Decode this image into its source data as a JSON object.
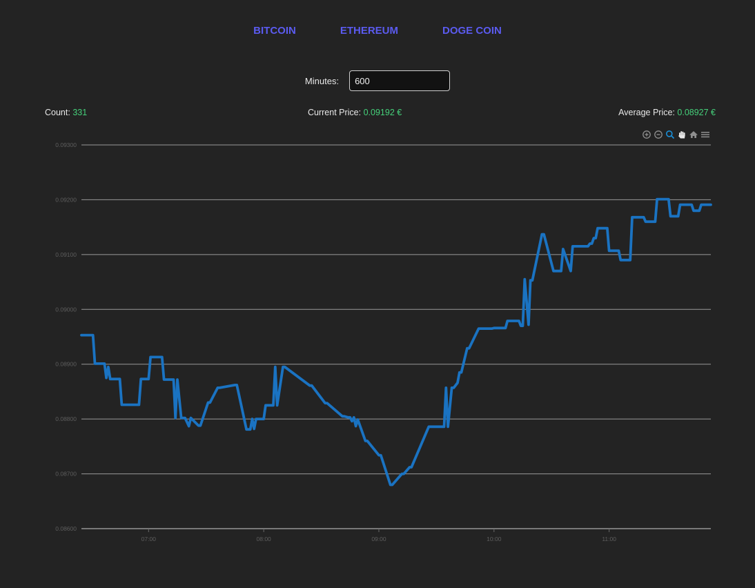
{
  "nav": {
    "items": [
      "BITCOIN",
      "ETHEREUM",
      "DOGE COIN"
    ]
  },
  "minutes": {
    "label": "Minutes:",
    "value": "600"
  },
  "stats": {
    "count_label": "Count:",
    "count_value": "331",
    "current_label": "Current Price:",
    "current_value": "0.09192 €",
    "average_label": "Average Price:",
    "average_value": "0.08927 €"
  },
  "toolbar": {
    "icons": [
      "zoom-in-icon",
      "zoom-out-icon",
      "selection-zoom-icon",
      "pan-icon",
      "home-icon",
      "menu-icon"
    ]
  },
  "colors": {
    "background": "#232323",
    "nav": "#5b5bf0",
    "value": "#45d07a",
    "line": "#1a73c2",
    "grid": "#9a9a9a",
    "tick": "#5e5e5e"
  },
  "chart_data": {
    "type": "line",
    "x_time_range": [
      "06:25",
      "11:53"
    ],
    "ylim": [
      0.086,
      0.093
    ],
    "yticks": [
      "0.08600",
      "0.08700",
      "0.08800",
      "0.08900",
      "0.09000",
      "0.09100",
      "0.09200",
      "0.09300"
    ],
    "xticks": [
      "07:00",
      "08:00",
      "09:00",
      "10:00",
      "11:00"
    ],
    "grid": true,
    "series": [
      {
        "x": [
          "06:25",
          "06:31",
          "06:32",
          "06:37",
          "06:38",
          "06:39",
          "06:40",
          "06:41",
          "06:45",
          "06:46",
          "06:55",
          "06:56",
          "07:00",
          "07:01",
          "07:07",
          "07:08",
          "07:08",
          "07:13",
          "07:14",
          "07:15",
          "07:17",
          "07:18",
          "07:19",
          "07:21",
          "07:22",
          "07:26",
          "07:27",
          "07:31",
          "07:32",
          "07:36",
          "07:37",
          "07:45",
          "07:46",
          "07:51",
          "07:52",
          "07:53",
          "07:54",
          "07:55",
          "07:56",
          "08:00",
          "08:01",
          "08:02",
          "08:03",
          "08:04",
          "08:05",
          "08:06",
          "08:07",
          "08:10",
          "08:11",
          "08:24",
          "08:25",
          "08:32",
          "08:33",
          "08:41",
          "08:42",
          "08:44",
          "08:45",
          "08:46",
          "08:47",
          "08:48",
          "08:49",
          "08:53",
          "08:54",
          "09:00",
          "09:01",
          "09:06",
          "09:07",
          "09:12",
          "09:13",
          "09:16",
          "09:17",
          "09:26",
          "09:27",
          "09:28",
          "09:29",
          "09:34",
          "09:35",
          "09:36",
          "09:38",
          "09:39",
          "09:41",
          "09:42",
          "09:43",
          "09:46",
          "09:47",
          "09:52",
          "09:53",
          "09:55",
          "09:56",
          "09:59",
          "10:00",
          "10:06",
          "10:07",
          "10:12",
          "10:13",
          "10:14",
          "10:15",
          "10:16",
          "10:18",
          "10:19",
          "10:20",
          "10:25",
          "10:26",
          "10:31",
          "10:32",
          "10:33",
          "10:34",
          "10:35",
          "10:36",
          "10:40",
          "10:41",
          "10:42",
          "10:43",
          "10:48",
          "10:49",
          "10:50",
          "10:51",
          "10:52",
          "10:53",
          "10:54",
          "10:59",
          "11:00",
          "11:05",
          "11:06",
          "11:11",
          "11:12",
          "11:18",
          "11:19",
          "11:24",
          "11:25",
          "11:31",
          "11:32",
          "11:36",
          "11:37",
          "11:43",
          "11:44",
          "11:47",
          "11:48",
          "11:53"
        ],
        "values": [
          0.08953,
          0.08953,
          0.08901,
          0.08901,
          0.08875,
          0.08895,
          0.08873,
          0.08873,
          0.08873,
          0.08826,
          0.08826,
          0.08873,
          0.08873,
          0.08913,
          0.08913,
          0.08872,
          0.08872,
          0.08872,
          0.08802,
          0.08872,
          0.08802,
          0.08802,
          0.08802,
          0.08787,
          0.08802,
          0.08788,
          0.08788,
          0.0883,
          0.0883,
          0.08857,
          0.08857,
          0.08862,
          0.08862,
          0.08781,
          0.08781,
          0.08781,
          0.088,
          0.08782,
          0.088,
          0.088,
          0.08825,
          0.08825,
          0.08825,
          0.08825,
          0.08825,
          0.08895,
          0.08825,
          0.08895,
          0.08895,
          0.08861,
          0.08861,
          0.08829,
          0.08829,
          0.08805,
          0.08805,
          0.08803,
          0.08803,
          0.08796,
          0.08803,
          0.08787,
          0.08799,
          0.0876,
          0.0876,
          0.08734,
          0.08734,
          0.0868,
          0.0868,
          0.087,
          0.087,
          0.08712,
          0.08712,
          0.08786,
          0.08786,
          0.08786,
          0.08786,
          0.08786,
          0.08857,
          0.08786,
          0.08857,
          0.08857,
          0.08866,
          0.08885,
          0.08885,
          0.08929,
          0.08929,
          0.08965,
          0.08965,
          0.08965,
          0.08965,
          0.08965,
          0.08966,
          0.08966,
          0.08979,
          0.08979,
          0.08979,
          0.0897,
          0.0897,
          0.09055,
          0.08972,
          0.09053,
          0.09053,
          0.09137,
          0.09137,
          0.0907,
          0.0907,
          0.0907,
          0.0907,
          0.0907,
          0.0911,
          0.0907,
          0.09115,
          0.09115,
          0.09115,
          0.09115,
          0.09115,
          0.0912,
          0.0912,
          0.0913,
          0.0913,
          0.09148,
          0.09148,
          0.09107,
          0.09107,
          0.0909,
          0.0909,
          0.09168,
          0.09168,
          0.0916,
          0.0916,
          0.09201,
          0.09201,
          0.0917,
          0.0917,
          0.09191,
          0.09191,
          0.0918,
          0.0918,
          0.09191,
          0.09191
        ]
      }
    ]
  }
}
